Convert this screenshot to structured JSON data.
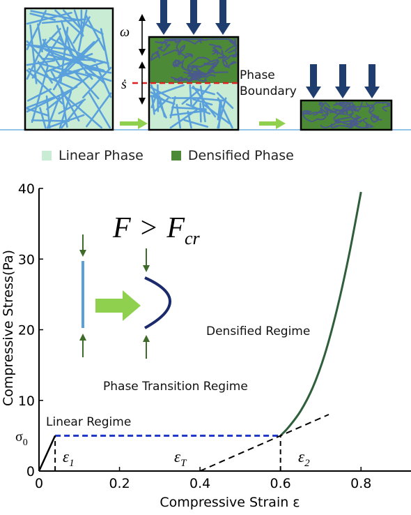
{
  "colors": {
    "linear_phase": "#c8ecd4",
    "densified_phase": "#4d8a38",
    "fiber": "#5aa0dc",
    "dense_fiber": "#4a5a8a",
    "arrow_navy": "#1f3d6e",
    "boundary": "#e02020",
    "green_arrow": "#8fd14f",
    "curve": "#2e5e3a",
    "plateau": "#1e36c8",
    "bent_fiber": "#1b2a6b"
  },
  "schematic": {
    "omega_label": "ω",
    "sdot_label": "ṡ",
    "boundary_label_line1": "Phase",
    "boundary_label_line2": "Boundary"
  },
  "legend": [
    {
      "label": "Linear Phase",
      "color": "#c8ecd4"
    },
    {
      "label": "Densified Phase",
      "color": "#4d8a38"
    }
  ],
  "chart_data": {
    "type": "line",
    "xlabel": "Compressive Strain ε",
    "ylabel": "Compressive Stress(Pa)",
    "xlim": [
      0,
      0.9
    ],
    "ylim": [
      0,
      40
    ],
    "xticks": [
      "0",
      "0.2",
      "0.4",
      "0.6",
      "0.8"
    ],
    "xtick_values": [
      0,
      0.2,
      0.4,
      0.6,
      0.8
    ],
    "yticks": [
      "0",
      "10",
      "20",
      "30",
      "40"
    ],
    "ytick_values": [
      0,
      10,
      20,
      30,
      40
    ],
    "sigma_label": "σ",
    "sigma_sub": "0",
    "sigma0": 5,
    "series": [
      {
        "id": "linear",
        "x": [
          0,
          0.04
        ],
        "y": [
          0,
          5
        ]
      },
      {
        "id": "plateau",
        "style": "dashed",
        "x": [
          0.04,
          0.6
        ],
        "y": [
          5,
          5
        ]
      },
      {
        "id": "densified",
        "x": [
          0.6,
          0.62,
          0.65,
          0.68,
          0.71,
          0.74,
          0.77,
          0.8
        ],
        "y": [
          5,
          6.2,
          8.5,
          11.8,
          16.5,
          22.8,
          30.5,
          39.5
        ]
      },
      {
        "id": "tangent",
        "style": "dashed",
        "x": [
          0.4,
          0.72
        ],
        "y": [
          0,
          8
        ]
      }
    ],
    "markers": [
      {
        "x": 0.04,
        "label": "ε",
        "sub": "1"
      },
      {
        "x": 0.6,
        "label": "ε",
        "sub": "2"
      }
    ],
    "epsT": {
      "x": 0.4,
      "label": "ε",
      "sub": "T"
    },
    "annotations": {
      "linear": "Linear Regime",
      "transition": "Phase Transition Regime",
      "densified": "Densified Regime"
    },
    "buckling": {
      "F": "F",
      "op": ">",
      "Fcr_main": "F",
      "Fcr_sub": "cr"
    }
  }
}
